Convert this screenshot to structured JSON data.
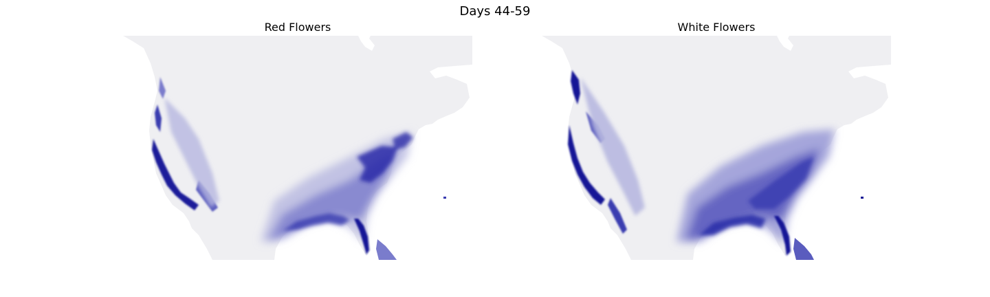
{
  "figure": {
    "title": "Days 44-59"
  },
  "panels": [
    {
      "title": "Red Flowers"
    },
    {
      "title": "White Flowers"
    }
  ],
  "colors": {
    "background": "#ffffff",
    "land_low": "#efeff2",
    "bloom_light": "#b7b8e0",
    "bloom_mid": "#5a5cbe",
    "bloom_high": "#161896"
  }
}
